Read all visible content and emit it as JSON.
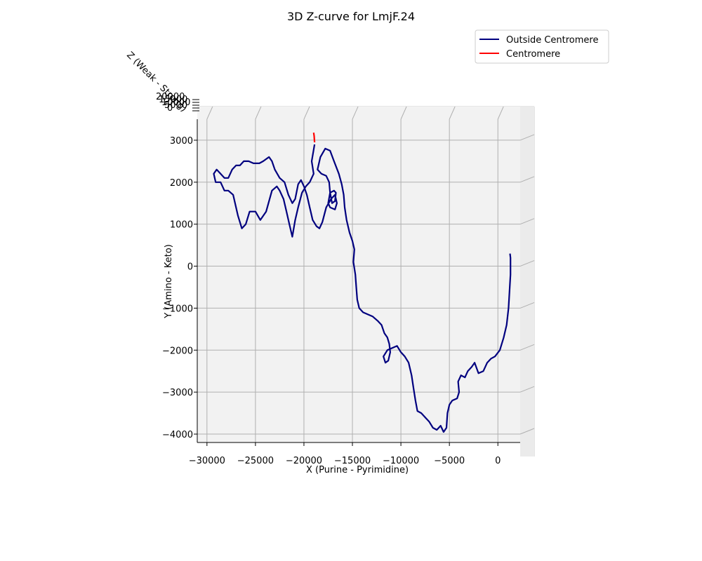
{
  "chart_data": {
    "type": "line",
    "title": "3D Z-curve for LmjF.24",
    "xlabel": "X (Purine - Pyrimidine)",
    "ylabel": "Y (Amino - Keto)",
    "zlabel": "Z (Weak - Strong)",
    "xlim": [
      -31000,
      2300
    ],
    "ylim": [
      -4200,
      3500
    ],
    "xticks": [
      -30000,
      -25000,
      -20000,
      -15000,
      -10000,
      -5000,
      0
    ],
    "xtick_labels": [
      "−30000",
      "−25000",
      "−20000",
      "−15000",
      "−10000",
      "−5000",
      "0"
    ],
    "yticks": [
      -4000,
      -3000,
      -2000,
      -1000,
      0,
      1000,
      2000,
      3000
    ],
    "ytick_labels": [
      "−4000",
      "−3000",
      "−2000",
      "−1000",
      "0",
      "1000",
      "2000",
      "3000"
    ],
    "ztick_labels": [
      "20000",
      "15000",
      "10000",
      "5000",
      "0"
    ],
    "grid": true,
    "legend_position": "upper right",
    "series": [
      {
        "name": "Outside Centromere",
        "color": "#00007f",
        "points": [
          [
            -18900,
            2900
          ],
          [
            -19200,
            2500
          ],
          [
            -19000,
            2200
          ],
          [
            -19400,
            2000
          ],
          [
            -19800,
            1900
          ],
          [
            -20200,
            1750
          ],
          [
            -20600,
            1400
          ],
          [
            -20900,
            1100
          ],
          [
            -21200,
            700
          ],
          [
            -21500,
            1000
          ],
          [
            -21800,
            1300
          ],
          [
            -22100,
            1600
          ],
          [
            -22500,
            1800
          ],
          [
            -22800,
            1900
          ],
          [
            -23300,
            1800
          ],
          [
            -23900,
            1300
          ],
          [
            -24500,
            1100
          ],
          [
            -25000,
            1300
          ],
          [
            -25600,
            1300
          ],
          [
            -26000,
            1000
          ],
          [
            -26400,
            900
          ],
          [
            -26800,
            1200
          ],
          [
            -27300,
            1700
          ],
          [
            -27800,
            1800
          ],
          [
            -28200,
            1800
          ],
          [
            -28600,
            2000
          ],
          [
            -29100,
            2000
          ],
          [
            -29300,
            2200
          ],
          [
            -29000,
            2300
          ],
          [
            -28600,
            2200
          ],
          [
            -28200,
            2100
          ],
          [
            -27800,
            2100
          ],
          [
            -27400,
            2300
          ],
          [
            -27000,
            2400
          ],
          [
            -26600,
            2400
          ],
          [
            -26200,
            2500
          ],
          [
            -25700,
            2500
          ],
          [
            -25200,
            2450
          ],
          [
            -24600,
            2450
          ],
          [
            -24200,
            2500
          ],
          [
            -23600,
            2600
          ],
          [
            -23300,
            2500
          ],
          [
            -23000,
            2300
          ],
          [
            -22500,
            2100
          ],
          [
            -22000,
            2000
          ],
          [
            -21600,
            1700
          ],
          [
            -21200,
            1500
          ],
          [
            -20900,
            1600
          ],
          [
            -20600,
            1950
          ],
          [
            -20300,
            2050
          ],
          [
            -20000,
            1900
          ],
          [
            -19700,
            1700
          ],
          [
            -19400,
            1400
          ],
          [
            -19100,
            1100
          ],
          [
            -18700,
            950
          ],
          [
            -18400,
            900
          ],
          [
            -18100,
            1050
          ],
          [
            -17700,
            1400
          ],
          [
            -17200,
            1600
          ],
          [
            -16800,
            1700
          ],
          [
            -16600,
            1500
          ],
          [
            -16800,
            1350
          ],
          [
            -17300,
            1400
          ],
          [
            -17500,
            1500
          ],
          [
            -17300,
            1750
          ],
          [
            -16900,
            1800
          ],
          [
            -16700,
            1750
          ],
          [
            -16800,
            1550
          ],
          [
            -17100,
            1500
          ],
          [
            -17300,
            1750
          ],
          [
            -17400,
            2000
          ],
          [
            -17700,
            2150
          ],
          [
            -18200,
            2200
          ],
          [
            -18600,
            2300
          ],
          [
            -18300,
            2600
          ],
          [
            -17800,
            2800
          ],
          [
            -17300,
            2750
          ],
          [
            -16900,
            2500
          ],
          [
            -16400,
            2200
          ],
          [
            -16100,
            1950
          ],
          [
            -15900,
            1700
          ],
          [
            -15800,
            1400
          ],
          [
            -15600,
            1100
          ],
          [
            -15300,
            800
          ],
          [
            -15000,
            600
          ],
          [
            -14800,
            400
          ],
          [
            -14900,
            100
          ],
          [
            -14700,
            -200
          ],
          [
            -14600,
            -500
          ],
          [
            -14500,
            -800
          ],
          [
            -14300,
            -1000
          ],
          [
            -13900,
            -1100
          ],
          [
            -13400,
            -1150
          ],
          [
            -12900,
            -1200
          ],
          [
            -12400,
            -1300
          ],
          [
            -12000,
            -1400
          ],
          [
            -11700,
            -1600
          ],
          [
            -11400,
            -1700
          ],
          [
            -11200,
            -1850
          ],
          [
            -11100,
            -2050
          ],
          [
            -11300,
            -2250
          ],
          [
            -11600,
            -2300
          ],
          [
            -11800,
            -2150
          ],
          [
            -11400,
            -2000
          ],
          [
            -10900,
            -1950
          ],
          [
            -10400,
            -1900
          ],
          [
            -10000,
            -2050
          ],
          [
            -9600,
            -2150
          ],
          [
            -9200,
            -2300
          ],
          [
            -8900,
            -2600
          ],
          [
            -8700,
            -2900
          ],
          [
            -8500,
            -3200
          ],
          [
            -8300,
            -3450
          ],
          [
            -7900,
            -3500
          ],
          [
            -7500,
            -3600
          ],
          [
            -7100,
            -3700
          ],
          [
            -6700,
            -3850
          ],
          [
            -6300,
            -3900
          ],
          [
            -5900,
            -3800
          ],
          [
            -5600,
            -3950
          ],
          [
            -5300,
            -3850
          ],
          [
            -5200,
            -3500
          ],
          [
            -5000,
            -3300
          ],
          [
            -4700,
            -3200
          ],
          [
            -4200,
            -3150
          ],
          [
            -4000,
            -3000
          ],
          [
            -4100,
            -2750
          ],
          [
            -3800,
            -2600
          ],
          [
            -3400,
            -2650
          ],
          [
            -3100,
            -2500
          ],
          [
            -2700,
            -2400
          ],
          [
            -2400,
            -2300
          ],
          [
            -2000,
            -2550
          ],
          [
            -1500,
            -2500
          ],
          [
            -1100,
            -2300
          ],
          [
            -700,
            -2200
          ],
          [
            -300,
            -2150
          ],
          [
            200,
            -2000
          ],
          [
            600,
            -1700
          ],
          [
            900,
            -1400
          ],
          [
            1100,
            -1000
          ],
          [
            1200,
            -600
          ],
          [
            1300,
            -200
          ],
          [
            1300,
            200
          ],
          [
            1250,
            300
          ]
        ]
      },
      {
        "name": "Centromere",
        "color": "#ff0000",
        "points": [
          [
            -19000,
            3180
          ],
          [
            -18950,
            3100
          ],
          [
            -18900,
            2950
          ]
        ]
      }
    ]
  }
}
